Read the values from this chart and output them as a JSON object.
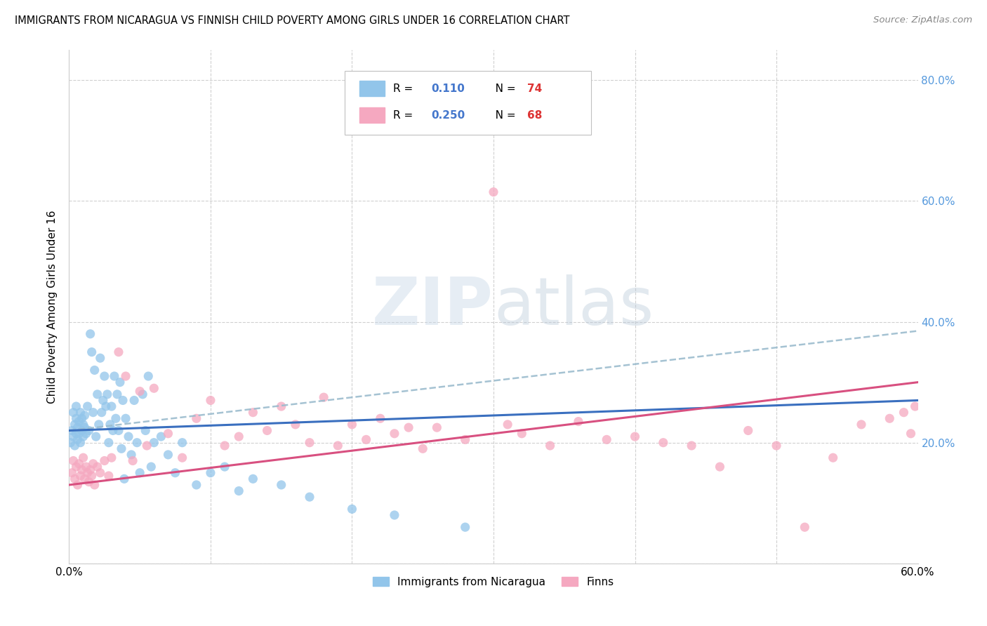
{
  "title": "IMMIGRANTS FROM NICARAGUA VS FINNISH CHILD POVERTY AMONG GIRLS UNDER 16 CORRELATION CHART",
  "source": "Source: ZipAtlas.com",
  "ylabel": "Child Poverty Among Girls Under 16",
  "xlabel": "",
  "legend_label_1": "Immigrants from Nicaragua",
  "legend_label_2": "Finns",
  "legend_R1": "R =  0.110",
  "legend_N1": "N = 74",
  "legend_R2": "R =  0.250",
  "legend_N2": "N = 68",
  "color_blue": "#92C5EA",
  "color_pink": "#F5A8C0",
  "color_blue_line": "#3A6FBF",
  "color_pink_line": "#D85080",
  "color_blue_dashed": "#9BBCCE",
  "watermark_zip": "ZIP",
  "watermark_atlas": "atlas",
  "xlim": [
    0.0,
    0.6
  ],
  "ylim": [
    0.0,
    0.85
  ],
  "xtick_positions": [
    0.0,
    0.1,
    0.2,
    0.3,
    0.4,
    0.5,
    0.6
  ],
  "xtick_labels": [
    "0.0%",
    "",
    "",
    "",
    "",
    "",
    "60.0%"
  ],
  "ytick_positions": [
    0.0,
    0.2,
    0.4,
    0.6,
    0.8
  ],
  "ytick_labels_right": [
    "",
    "20.0%",
    "40.0%",
    "60.0%",
    "80.0%"
  ],
  "blue_line_x0": 0.0,
  "blue_line_y0": 0.22,
  "blue_line_x1": 0.6,
  "blue_line_y1": 0.27,
  "dashed_line_x0": 0.0,
  "dashed_line_y0": 0.22,
  "dashed_line_x1": 0.6,
  "dashed_line_y1": 0.385,
  "pink_line_x0": 0.0,
  "pink_line_y0": 0.13,
  "pink_line_x1": 0.6,
  "pink_line_y1": 0.3,
  "blue_pts_x": [
    0.001,
    0.002,
    0.003,
    0.003,
    0.004,
    0.004,
    0.005,
    0.005,
    0.005,
    0.006,
    0.006,
    0.007,
    0.007,
    0.008,
    0.008,
    0.009,
    0.009,
    0.01,
    0.01,
    0.011,
    0.011,
    0.012,
    0.013,
    0.014,
    0.015,
    0.016,
    0.017,
    0.018,
    0.019,
    0.02,
    0.021,
    0.022,
    0.023,
    0.024,
    0.025,
    0.026,
    0.027,
    0.028,
    0.029,
    0.03,
    0.031,
    0.032,
    0.033,
    0.034,
    0.035,
    0.036,
    0.037,
    0.038,
    0.039,
    0.04,
    0.042,
    0.044,
    0.046,
    0.048,
    0.05,
    0.052,
    0.054,
    0.056,
    0.058,
    0.06,
    0.065,
    0.07,
    0.075,
    0.08,
    0.09,
    0.1,
    0.11,
    0.12,
    0.13,
    0.15,
    0.17,
    0.2,
    0.23,
    0.28
  ],
  "blue_pts_y": [
    0.2,
    0.22,
    0.21,
    0.25,
    0.195,
    0.23,
    0.215,
    0.24,
    0.26,
    0.205,
    0.225,
    0.215,
    0.235,
    0.2,
    0.25,
    0.22,
    0.24,
    0.21,
    0.23,
    0.225,
    0.245,
    0.215,
    0.26,
    0.22,
    0.38,
    0.35,
    0.25,
    0.32,
    0.21,
    0.28,
    0.23,
    0.34,
    0.25,
    0.27,
    0.31,
    0.26,
    0.28,
    0.2,
    0.23,
    0.26,
    0.22,
    0.31,
    0.24,
    0.28,
    0.22,
    0.3,
    0.19,
    0.27,
    0.14,
    0.24,
    0.21,
    0.18,
    0.27,
    0.2,
    0.15,
    0.28,
    0.22,
    0.31,
    0.16,
    0.2,
    0.21,
    0.18,
    0.15,
    0.2,
    0.13,
    0.15,
    0.16,
    0.12,
    0.14,
    0.13,
    0.11,
    0.09,
    0.08,
    0.06
  ],
  "pink_pts_x": [
    0.002,
    0.003,
    0.004,
    0.005,
    0.006,
    0.007,
    0.008,
    0.009,
    0.01,
    0.011,
    0.012,
    0.013,
    0.014,
    0.015,
    0.016,
    0.017,
    0.018,
    0.02,
    0.022,
    0.025,
    0.028,
    0.03,
    0.035,
    0.04,
    0.045,
    0.05,
    0.055,
    0.06,
    0.07,
    0.08,
    0.09,
    0.1,
    0.11,
    0.12,
    0.13,
    0.14,
    0.15,
    0.16,
    0.17,
    0.18,
    0.19,
    0.2,
    0.21,
    0.22,
    0.23,
    0.24,
    0.25,
    0.26,
    0.28,
    0.3,
    0.31,
    0.32,
    0.34,
    0.36,
    0.38,
    0.4,
    0.42,
    0.44,
    0.46,
    0.48,
    0.5,
    0.52,
    0.54,
    0.56,
    0.58,
    0.59,
    0.595,
    0.598
  ],
  "pink_pts_y": [
    0.15,
    0.17,
    0.14,
    0.16,
    0.13,
    0.165,
    0.145,
    0.155,
    0.175,
    0.14,
    0.16,
    0.15,
    0.135,
    0.155,
    0.145,
    0.165,
    0.13,
    0.16,
    0.15,
    0.17,
    0.145,
    0.175,
    0.35,
    0.31,
    0.17,
    0.285,
    0.195,
    0.29,
    0.215,
    0.175,
    0.24,
    0.27,
    0.195,
    0.21,
    0.25,
    0.22,
    0.26,
    0.23,
    0.2,
    0.275,
    0.195,
    0.23,
    0.205,
    0.24,
    0.215,
    0.225,
    0.19,
    0.225,
    0.205,
    0.615,
    0.23,
    0.215,
    0.195,
    0.235,
    0.205,
    0.21,
    0.2,
    0.195,
    0.16,
    0.22,
    0.195,
    0.06,
    0.175,
    0.23,
    0.24,
    0.25,
    0.215,
    0.26
  ]
}
